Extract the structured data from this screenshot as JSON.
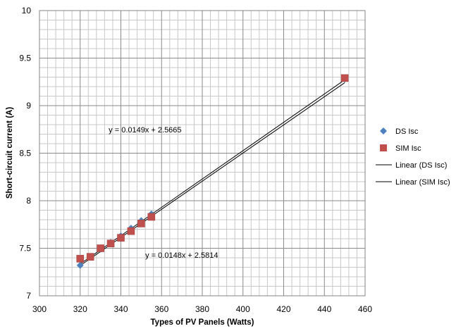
{
  "chart_data": {
    "type": "scatter",
    "xlabel": "Types of PV Panels (Watts)",
    "ylabel": "Short-circuit current (A)",
    "xlim": [
      300,
      460
    ],
    "ylim": [
      7,
      10
    ],
    "x_ticks": [
      "300",
      "320",
      "340",
      "360",
      "380",
      "400",
      "420",
      "440",
      "460"
    ],
    "y_ticks": [
      "7",
      "7.5",
      "8",
      "8.5",
      "9",
      "9.5",
      "10"
    ],
    "x_tick_values": [
      300,
      320,
      340,
      360,
      380,
      400,
      420,
      440,
      460
    ],
    "y_tick_values": [
      7,
      7.5,
      8,
      8.5,
      9,
      9.5,
      10
    ],
    "grid": true,
    "legend_position": "right",
    "series": [
      {
        "name": "DS Isc",
        "marker": "diamond",
        "color": "#4F81BD",
        "x": [
          320,
          325,
          330,
          335,
          340,
          345,
          350,
          355,
          450
        ],
        "y": [
          7.32,
          7.41,
          7.49,
          7.56,
          7.63,
          7.71,
          7.79,
          7.86,
          9.28
        ]
      },
      {
        "name": "SIM Isc",
        "marker": "square",
        "color": "#C0504D",
        "x": [
          320,
          325,
          330,
          335,
          340,
          345,
          350,
          355,
          450
        ],
        "y": [
          7.39,
          7.41,
          7.5,
          7.55,
          7.61,
          7.68,
          7.76,
          7.83,
          9.29
        ]
      }
    ],
    "trendlines": [
      {
        "name": "Linear (DS Isc)",
        "slope": 0.0149,
        "intercept": 2.5665,
        "x_range": [
          320,
          450
        ],
        "color": "#000000"
      },
      {
        "name": "Linear (SIM Isc)",
        "slope": 0.0148,
        "intercept": 2.5814,
        "x_range": [
          320,
          450
        ],
        "color": "#000000"
      }
    ],
    "annotations": [
      {
        "text": "y = 0.0149x + 2.5665",
        "x": 334,
        "y": 8.72
      },
      {
        "text": "y = 0.0148x + 2.5814",
        "x": 352,
        "y": 7.4
      }
    ]
  }
}
